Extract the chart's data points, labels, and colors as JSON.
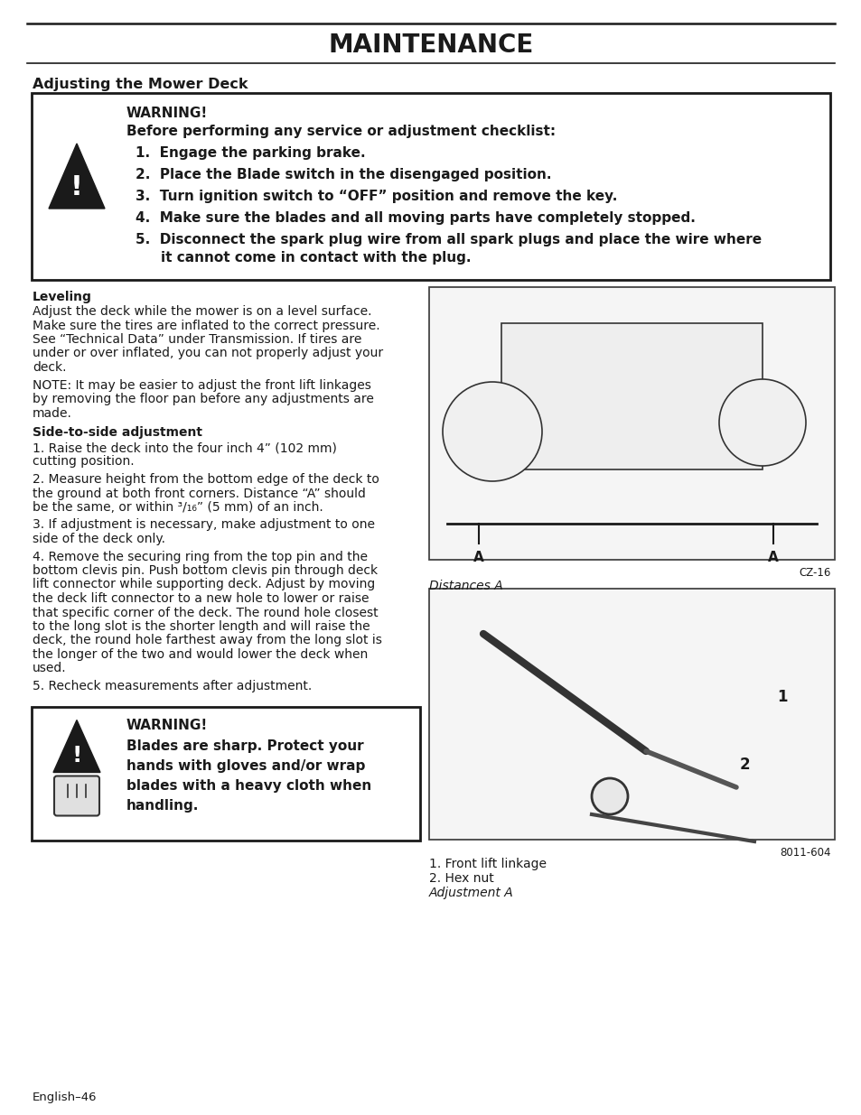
{
  "title": "MAINTENANCE",
  "page_bg": "#ffffff",
  "text_color": "#1a1a1a",
  "section_heading": "Adjusting the Mower Deck",
  "warning1_title": "WARNING!",
  "warning1_subtitle": "Before performing any service or adjustment checklist:",
  "warning1_items": [
    "Engage the parking brake.",
    "Place the Blade switch in the disengaged position.",
    "Turn ignition switch to “OFF” position and remove the key.",
    "Make sure the blades and all moving parts have completely stopped.",
    "Disconnect the spark plug wire from all spark plugs and place the wire where it cannot come in contact with the plug."
  ],
  "leveling_heading": "Leveling",
  "leveling_lines": [
    "Adjust the deck while the mower is on a level surface.",
    "Make sure the tires are inflated to the correct pressure.",
    "See “Technical Data” under Transmission. If tires are",
    "under or over inflated, you can not properly adjust your",
    "deck."
  ],
  "note_lines": [
    "NOTE: It may be easier to adjust the front lift linkages",
    "by removing the floor pan before any adjustments are",
    "made."
  ],
  "side_heading": "Side-to-side adjustment",
  "para1_lines": [
    "1. Raise the deck into the four inch 4” (102 mm)",
    "cutting position."
  ],
  "para2_lines": [
    "2. Measure height from the bottom edge of the deck to",
    "the ground at both front corners. Distance “A” should",
    "be the same, or within ³/₁₆” (5 mm) of an inch."
  ],
  "para3_lines": [
    "3. If adjustment is necessary, make adjustment to one",
    "side of the deck only."
  ],
  "para4_lines": [
    "4. Remove the securing ring from the top pin and the",
    "bottom clevis pin. Push bottom clevis pin through deck",
    "lift connector while supporting deck. Adjust by moving",
    "the deck lift connector to a new hole to lower or raise",
    "that specific corner of the deck. The round hole closest",
    "to the long slot is the shorter length and will raise the",
    "deck, the round hole farthest away from the long slot is",
    "the longer of the two and would lower the deck when",
    "used."
  ],
  "para5": "5. Recheck measurements after adjustment.",
  "image1_caption": "Distances A",
  "image1_code": "CZ-16",
  "image2_line1": "1. Front lift linkage",
  "image2_line2": "2. Hex nut",
  "image2_line3": "Adjustment A",
  "image2_code": "8011-604",
  "warning2_title": "WARNING!",
  "warning2_lines": [
    "Blades are sharp. Protect your",
    "hands with gloves and/or wrap",
    "blades with a heavy cloth when",
    "handling."
  ],
  "footer": "English–46"
}
